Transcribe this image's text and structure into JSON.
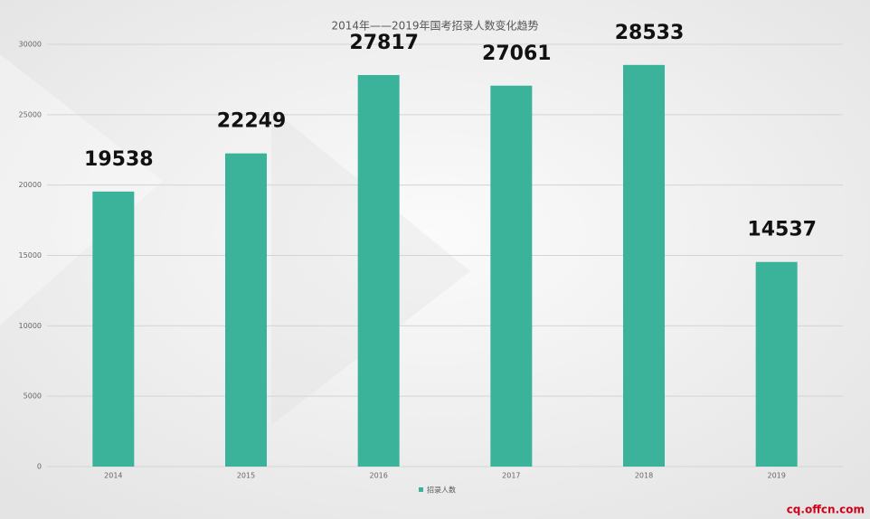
{
  "chart_data": {
    "type": "bar",
    "title": "2014年——2019年国考招录人数变化趋势",
    "categories": [
      "2014",
      "2015",
      "2016",
      "2017",
      "2018",
      "2019"
    ],
    "series": [
      {
        "name": "招录人数",
        "color": "#3bb39a",
        "values": [
          19538,
          22249,
          27817,
          27061,
          28533,
          14537
        ]
      }
    ],
    "ylim": [
      0,
      30000
    ],
    "yticks": [
      0,
      5000,
      10000,
      15000,
      20000,
      25000,
      30000
    ],
    "grid": true,
    "legend": "bottom",
    "watermark": "cq.offcn.com"
  }
}
